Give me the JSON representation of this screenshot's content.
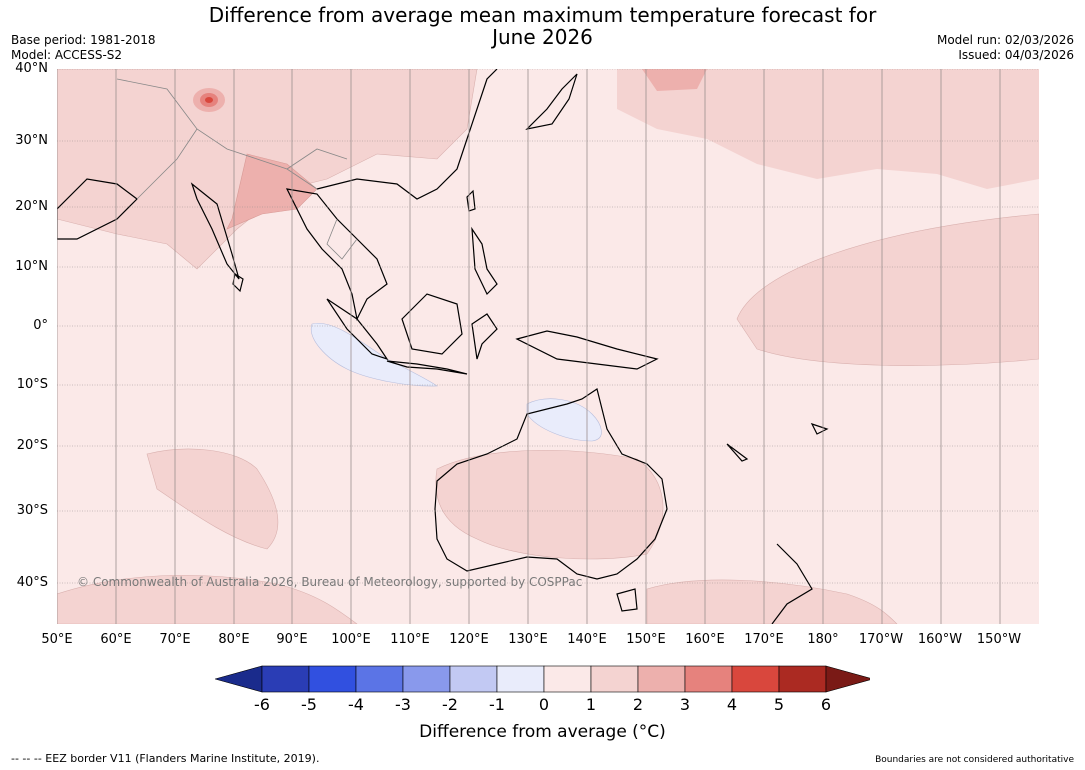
{
  "title": {
    "line1": "Difference from average mean maximum temperature forecast for",
    "line2": "June 2026"
  },
  "meta": {
    "base_period": "Base period: 1981-2018",
    "model": "Model: ACCESS-S2",
    "model_run": "Model run: 02/03/2026",
    "issued": "Issued: 04/03/2026"
  },
  "map": {
    "copyright": "© Commonwealth of Australia 2026, Bureau of Meteorology, supported by COSPPac",
    "lat_labels": [
      "40°N",
      "30°N",
      "20°N",
      "10°N",
      "0°",
      "10°S",
      "20°S",
      "30°S",
      "40°S"
    ],
    "lon_labels": [
      "50°E",
      "60°E",
      "70°E",
      "80°E",
      "90°E",
      "100°E",
      "110°E",
      "120°E",
      "130°E",
      "140°E",
      "150°E",
      "160°E",
      "170°E",
      "180°",
      "170°W",
      "160°W",
      "150°W"
    ]
  },
  "colorbar": {
    "ticks": [
      "-6",
      "-5",
      "-4",
      "-3",
      "-2",
      "-1",
      "0",
      "1",
      "2",
      "3",
      "4",
      "5",
      "6"
    ],
    "colors": [
      "#1a2b8c",
      "#2a3db5",
      "#3150e0",
      "#5b74e6",
      "#8999ec",
      "#c2c9f3",
      "#e9ecfb",
      "#fbe9e8",
      "#f4d3d1",
      "#edb0ad",
      "#e6827d",
      "#d9473d",
      "#ab2a22",
      "#7a1a16"
    ],
    "label": "Difference from average (°C)"
  },
  "footer": {
    "eez": "--  --  -- EEZ border V11 (Flanders Marine Institute, 2019).",
    "disclaimer": "Boundaries are not considered authoritative"
  }
}
